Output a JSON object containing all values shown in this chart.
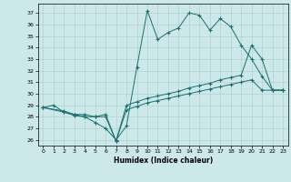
{
  "xlabel": "Humidex (Indice chaleur)",
  "bg_color": "#cce8e8",
  "line_color": "#1a7070",
  "grid_color": "#aacece",
  "xlim": [
    -0.5,
    23.5
  ],
  "ylim": [
    25.5,
    37.8
  ],
  "yticks": [
    26,
    27,
    28,
    29,
    30,
    31,
    32,
    33,
    34,
    35,
    36,
    37
  ],
  "xticks": [
    0,
    1,
    2,
    3,
    4,
    5,
    6,
    7,
    8,
    9,
    10,
    11,
    12,
    13,
    14,
    15,
    16,
    17,
    18,
    19,
    20,
    21,
    22,
    23
  ],
  "series": [
    {
      "x": [
        0,
        1,
        2,
        3,
        4,
        5,
        6,
        7,
        8,
        9,
        10,
        11,
        12,
        13,
        14,
        15,
        16,
        17,
        18,
        19,
        20,
        21,
        22,
        23
      ],
      "y": [
        28.8,
        29.0,
        28.4,
        28.1,
        28.0,
        27.5,
        27.0,
        26.0,
        27.2,
        32.3,
        37.2,
        34.7,
        35.3,
        35.7,
        37.0,
        36.8,
        35.5,
        36.5,
        35.8,
        34.2,
        33.0,
        31.5,
        30.3,
        30.3
      ]
    },
    {
      "x": [
        0,
        2,
        3,
        4,
        5,
        6,
        7,
        8,
        9,
        10,
        11,
        12,
        13,
        14,
        15,
        16,
        17,
        18,
        19,
        20,
        21,
        22,
        23
      ],
      "y": [
        28.8,
        28.5,
        28.2,
        28.2,
        28.0,
        28.2,
        25.9,
        29.0,
        29.3,
        29.6,
        29.8,
        30.0,
        30.2,
        30.5,
        30.7,
        30.9,
        31.2,
        31.4,
        31.6,
        34.2,
        33.0,
        30.3,
        30.3
      ]
    },
    {
      "x": [
        0,
        2,
        3,
        4,
        5,
        6,
        7,
        8,
        9,
        10,
        11,
        12,
        13,
        14,
        15,
        16,
        17,
        18,
        19,
        20,
        21,
        22,
        23
      ],
      "y": [
        28.8,
        28.4,
        28.2,
        28.0,
        28.0,
        28.0,
        25.9,
        28.6,
        28.9,
        29.2,
        29.4,
        29.6,
        29.8,
        30.0,
        30.2,
        30.4,
        30.6,
        30.8,
        31.0,
        31.2,
        30.3,
        30.3,
        30.3
      ]
    }
  ]
}
